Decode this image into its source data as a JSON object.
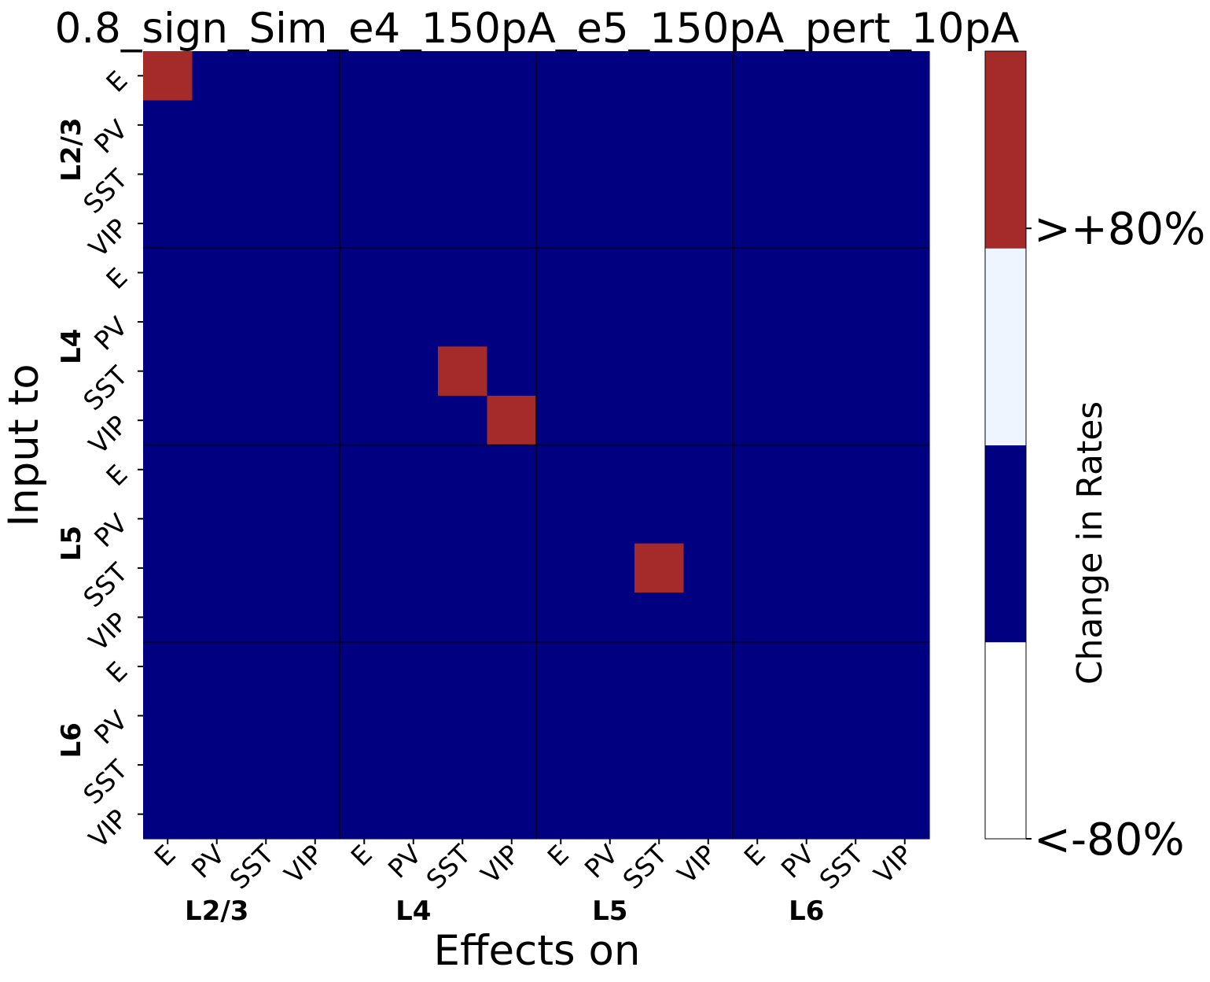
{
  "chart_data": {
    "type": "heatmap",
    "title": "0.8_sign_Sim_e4_150pA_e5_150pA_pert_10pA",
    "xlabel": "Effects on",
    "ylabel": "Input to",
    "layers": [
      "L2/3",
      "L4",
      "L5",
      "L6"
    ],
    "cell_types": [
      "E",
      "PV",
      "SST",
      "VIP"
    ],
    "values": [
      [
        1,
        0,
        0,
        0,
        0,
        0,
        0,
        0,
        0,
        0,
        0,
        0,
        0,
        0,
        0,
        0
      ],
      [
        0,
        0,
        0,
        0,
        0,
        0,
        0,
        0,
        0,
        0,
        0,
        0,
        0,
        0,
        0,
        0
      ],
      [
        0,
        0,
        0,
        0,
        0,
        0,
        0,
        0,
        0,
        0,
        0,
        0,
        0,
        0,
        0,
        0
      ],
      [
        0,
        0,
        0,
        0,
        0,
        0,
        0,
        0,
        0,
        0,
        0,
        0,
        0,
        0,
        0,
        0
      ],
      [
        0,
        0,
        0,
        0,
        0,
        0,
        0,
        0,
        0,
        0,
        0,
        0,
        0,
        0,
        0,
        0
      ],
      [
        0,
        0,
        0,
        0,
        0,
        0,
        0,
        0,
        0,
        0,
        0,
        0,
        0,
        0,
        0,
        0
      ],
      [
        0,
        0,
        0,
        0,
        0,
        0,
        1,
        0,
        0,
        0,
        0,
        0,
        0,
        0,
        0,
        0
      ],
      [
        0,
        0,
        0,
        0,
        0,
        0,
        0,
        1,
        0,
        0,
        0,
        0,
        0,
        0,
        0,
        0
      ],
      [
        0,
        0,
        0,
        0,
        0,
        0,
        0,
        0,
        0,
        0,
        0,
        0,
        0,
        0,
        0,
        0
      ],
      [
        0,
        0,
        0,
        0,
        0,
        0,
        0,
        0,
        0,
        0,
        0,
        0,
        0,
        0,
        0,
        0
      ],
      [
        0,
        0,
        0,
        0,
        0,
        0,
        0,
        0,
        0,
        0,
        1,
        0,
        0,
        0,
        0,
        0
      ],
      [
        0,
        0,
        0,
        0,
        0,
        0,
        0,
        0,
        0,
        0,
        0,
        0,
        0,
        0,
        0,
        0
      ],
      [
        0,
        0,
        0,
        0,
        0,
        0,
        0,
        0,
        0,
        0,
        0,
        0,
        0,
        0,
        0,
        0
      ],
      [
        0,
        0,
        0,
        0,
        0,
        0,
        0,
        0,
        0,
        0,
        0,
        0,
        0,
        0,
        0,
        0
      ],
      [
        0,
        0,
        0,
        0,
        0,
        0,
        0,
        0,
        0,
        0,
        0,
        0,
        0,
        0,
        0,
        0
      ],
      [
        0,
        0,
        0,
        0,
        0,
        0,
        0,
        0,
        0,
        0,
        0,
        0,
        0,
        0,
        0,
        0
      ]
    ],
    "value_colors": {
      "1": "#a52a2a",
      "0": "#000080"
    },
    "colorbar": {
      "label": "Change in Rates",
      "ticks": [
        "<-80%",
        ">+80%"
      ],
      "colors_bottom_to_top": [
        "#ffffff",
        "#000080",
        "#eef5fe",
        "#a52a2a"
      ]
    }
  }
}
